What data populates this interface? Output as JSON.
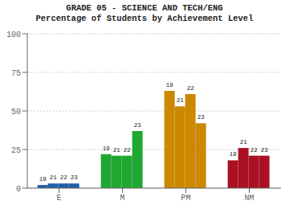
{
  "chart_data": {
    "type": "bar",
    "title": "GRADE 05 - SCIENCE AND TECH/ENG",
    "subtitle": "Percentage of Students by Achievement Level",
    "categories": [
      "E",
      "M",
      "PM",
      "NM"
    ],
    "series": [
      {
        "name": "19",
        "values": [
          2,
          22,
          63,
          18
        ],
        "colors": [
          "#1e5fa8",
          "#1ea832",
          "#cc8800",
          "#aa1122"
        ]
      },
      {
        "name": "21",
        "values": [
          3,
          21,
          53,
          26
        ],
        "colors": [
          "#1e5fa8",
          "#1ea832",
          "#cc8800",
          "#aa1122"
        ]
      },
      {
        "name": "22",
        "values": [
          3,
          21,
          61,
          21
        ],
        "colors": [
          "#1e5fa8",
          "#1ea832",
          "#cc8800",
          "#aa1122"
        ]
      },
      {
        "name": "23",
        "values": [
          3,
          37,
          42,
          21
        ],
        "colors": [
          "#1e5fa8",
          "#1ea832",
          "#cc8800",
          "#aa1122"
        ]
      }
    ],
    "ylim": [
      0,
      100
    ],
    "yticks": [
      0,
      25,
      50,
      75,
      100
    ],
    "grid": true
  }
}
